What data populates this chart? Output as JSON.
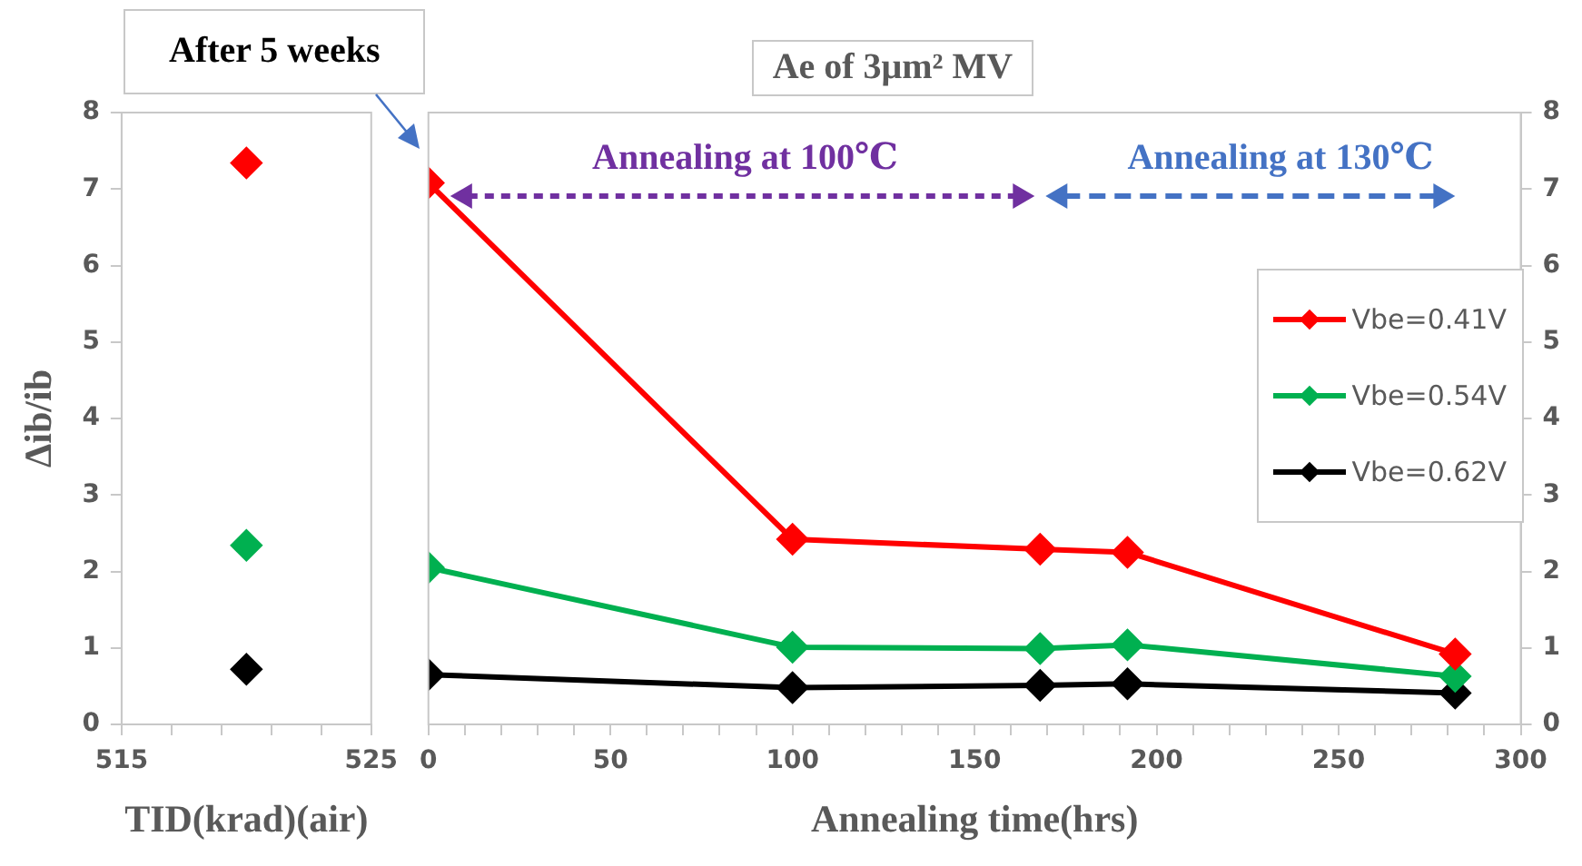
{
  "chart_data": [
    {
      "type": "line",
      "annotations": [
        "After 5 weeks"
      ],
      "xlabel": "TID(krad)(air)",
      "ylabel": "Δib/ib",
      "x": [
        520
      ],
      "xlim": [
        515,
        525
      ],
      "xticks": [
        515,
        {
          "value": 517,
          "label": null
        },
        {
          "value": 519,
          "label": null
        },
        {
          "value": 521,
          "label": null
        },
        {
          "value": 523,
          "label": null
        },
        525
      ],
      "ylim": [
        0,
        8
      ],
      "yticks": [
        0,
        1,
        2,
        3,
        4,
        5,
        6,
        7,
        8
      ],
      "marker": "diamond",
      "series": [
        {
          "color": "#ff0000",
          "values": [
            7.34
          ]
        },
        {
          "color": "#00b050",
          "values": [
            2.34
          ]
        },
        {
          "color": "#000000",
          "values": [
            0.72
          ]
        }
      ]
    },
    {
      "type": "line",
      "title": "Ae of 3μm² MV",
      "annotations": [
        "Annealing at 100℃",
        "Annealing at 130℃"
      ],
      "xlabel": "Annealing time(hrs)",
      "x": [
        0,
        100,
        168,
        192,
        282
      ],
      "xlim": [
        0,
        300
      ],
      "xticks": [
        0,
        {
          "value": 10,
          "label": null
        },
        {
          "value": 20,
          "label": null
        },
        {
          "value": 30,
          "label": null
        },
        {
          "value": 40,
          "label": null
        },
        50,
        {
          "value": 60,
          "label": null
        },
        {
          "value": 70,
          "label": null
        },
        {
          "value": 80,
          "label": null
        },
        {
          "value": 90,
          "label": null
        },
        100,
        {
          "value": 110,
          "label": null
        },
        {
          "value": 120,
          "label": null
        },
        {
          "value": 130,
          "label": null
        },
        {
          "value": 140,
          "label": null
        },
        150,
        {
          "value": 160,
          "label": null
        },
        {
          "value": 170,
          "label": null
        },
        {
          "value": 180,
          "label": null
        },
        {
          "value": 190,
          "label": null
        },
        200,
        {
          "value": 210,
          "label": null
        },
        {
          "value": 220,
          "label": null
        },
        {
          "value": 230,
          "label": null
        },
        {
          "value": 240,
          "label": null
        },
        250,
        {
          "value": 260,
          "label": null
        },
        {
          "value": 270,
          "label": null
        },
        {
          "value": 280,
          "label": null
        },
        {
          "value": 290,
          "label": null
        },
        300
      ],
      "y2lim": [
        0,
        8
      ],
      "y2ticks": [
        0,
        1,
        2,
        3,
        4,
        5,
        6,
        7,
        8
      ],
      "legend": "right",
      "marker": "diamond",
      "series": [
        {
          "name": "Vbe=0.41V",
          "color": "#ff0000",
          "axis": "y2",
          "values": [
            7.08,
            2.42,
            2.29,
            2.25,
            0.92
          ]
        },
        {
          "name": "Vbe=0.54V",
          "color": "#00b050",
          "axis": "y2",
          "values": [
            2.05,
            1.01,
            0.99,
            1.04,
            0.63
          ]
        },
        {
          "name": "Vbe=0.62V",
          "color": "#000000",
          "axis": "y2",
          "values": [
            0.65,
            0.48,
            0.51,
            0.53,
            0.41
          ]
        }
      ]
    }
  ]
}
